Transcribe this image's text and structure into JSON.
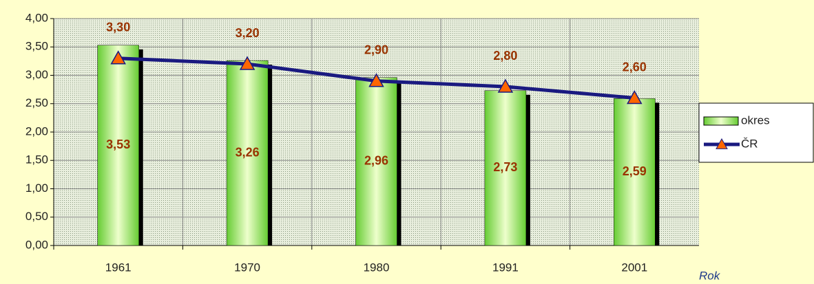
{
  "chart_data": {
    "type": "bar",
    "categories": [
      "1961",
      "1970",
      "1980",
      "1991",
      "2001"
    ],
    "x_label": "Rok",
    "series": [
      {
        "name": "okres",
        "type": "bar",
        "color": "#99e65c",
        "values": [
          3.53,
          3.26,
          2.96,
          2.73,
          2.59
        ],
        "value_labels": [
          "3,53",
          "3,26",
          "2,96",
          "2,73",
          "2,59"
        ]
      },
      {
        "name": "ČR",
        "type": "line",
        "color": "#1a1a80",
        "marker_color": "#ff6600",
        "values": [
          3.3,
          3.2,
          2.9,
          2.8,
          2.6
        ],
        "value_labels": [
          "3,30",
          "3,20",
          "2,90",
          "2,80",
          "2,60"
        ]
      }
    ],
    "ylim": [
      0,
      4
    ],
    "yticks": [
      {
        "value": 0,
        "label": "0,00"
      },
      {
        "value": 0.5,
        "label": "0,50"
      },
      {
        "value": 1,
        "label": "1,00"
      },
      {
        "value": 1.5,
        "label": "1,50"
      },
      {
        "value": 2,
        "label": "2,00"
      },
      {
        "value": 2.5,
        "label": "2,50"
      },
      {
        "value": 3,
        "label": "3,00"
      },
      {
        "value": 3.5,
        "label": "3,50"
      },
      {
        "value": 4,
        "label": "4,00"
      }
    ],
    "grid": true
  }
}
